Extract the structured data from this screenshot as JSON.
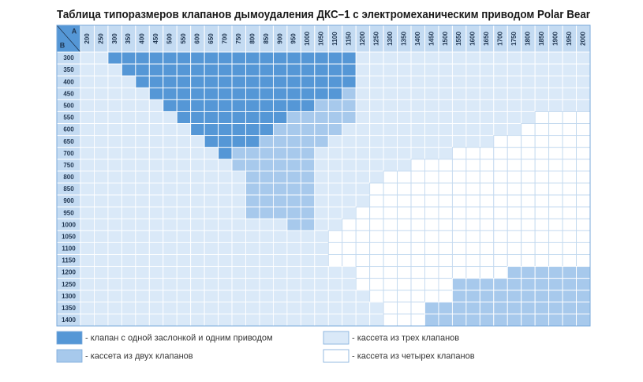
{
  "title": "Таблица типоразмеров клапанов дымоудаления ДКС–1 с электромеханическим приводом Polar Bear",
  "table": {
    "column_axis_label": "A",
    "row_axis_label": "B",
    "columns": [
      200,
      250,
      300,
      350,
      400,
      450,
      500,
      550,
      600,
      650,
      700,
      750,
      800,
      850,
      900,
      950,
      1000,
      1050,
      1100,
      1150,
      1200,
      1250,
      1300,
      1350,
      1400,
      1450,
      1500,
      1550,
      1600,
      1650,
      1700,
      1750,
      1800,
      1850,
      1900,
      1950,
      2000
    ],
    "rows": [
      300,
      350,
      400,
      450,
      500,
      550,
      600,
      650,
      700,
      750,
      800,
      850,
      900,
      950,
      1000,
      1050,
      1100,
      1150,
      1200,
      1250,
      1300,
      1350,
      1400
    ],
    "cells": [
      "3311111111111111111133333333333333333",
      "3331111111111111111133333333333333333",
      "3333111111111111111133333333333333333",
      "3333311111111111111233333333333333333",
      "3333331111111111122233333333333333333",
      "3333333111111112222233333333333334444",
      "3333333311111122222333333333333344444",
      "3333333331111222223333333333334444444",
      "3333333333122222233333333334444444444",
      "3333333333322222233333334444444444444",
      "3333333333332222233333444444444444444",
      "3333333333332222233334444444444444444",
      "3333333333332222233334444444444444444",
      "3333333333332222233344444444444444444",
      "3333333333333332233444444444444444444",
      "3333333333333333334444444444444444444",
      "3333333333333333334444444444444444444",
      "3333333333333333334444444444444444444",
      "3333333333333333333344444444444222222",
      "3333333333333333333344444442222222222",
      "3333333333333333333334444442222222222",
      "3333333333333333333333444222222222222",
      "3333333333333333333333444222222222222"
    ]
  },
  "legend": [
    {
      "label": "- клапан с одной заслонкой и одним приводом",
      "color": "#5597d6"
    },
    {
      "label": "- кассета из двух клапанов",
      "color": "#a7c9ec"
    },
    {
      "label": "- кассета из трех клапанов",
      "color": "#dae9f8"
    },
    {
      "label": "- кассета из четырех клапанов",
      "color": "#ffffff"
    }
  ]
}
